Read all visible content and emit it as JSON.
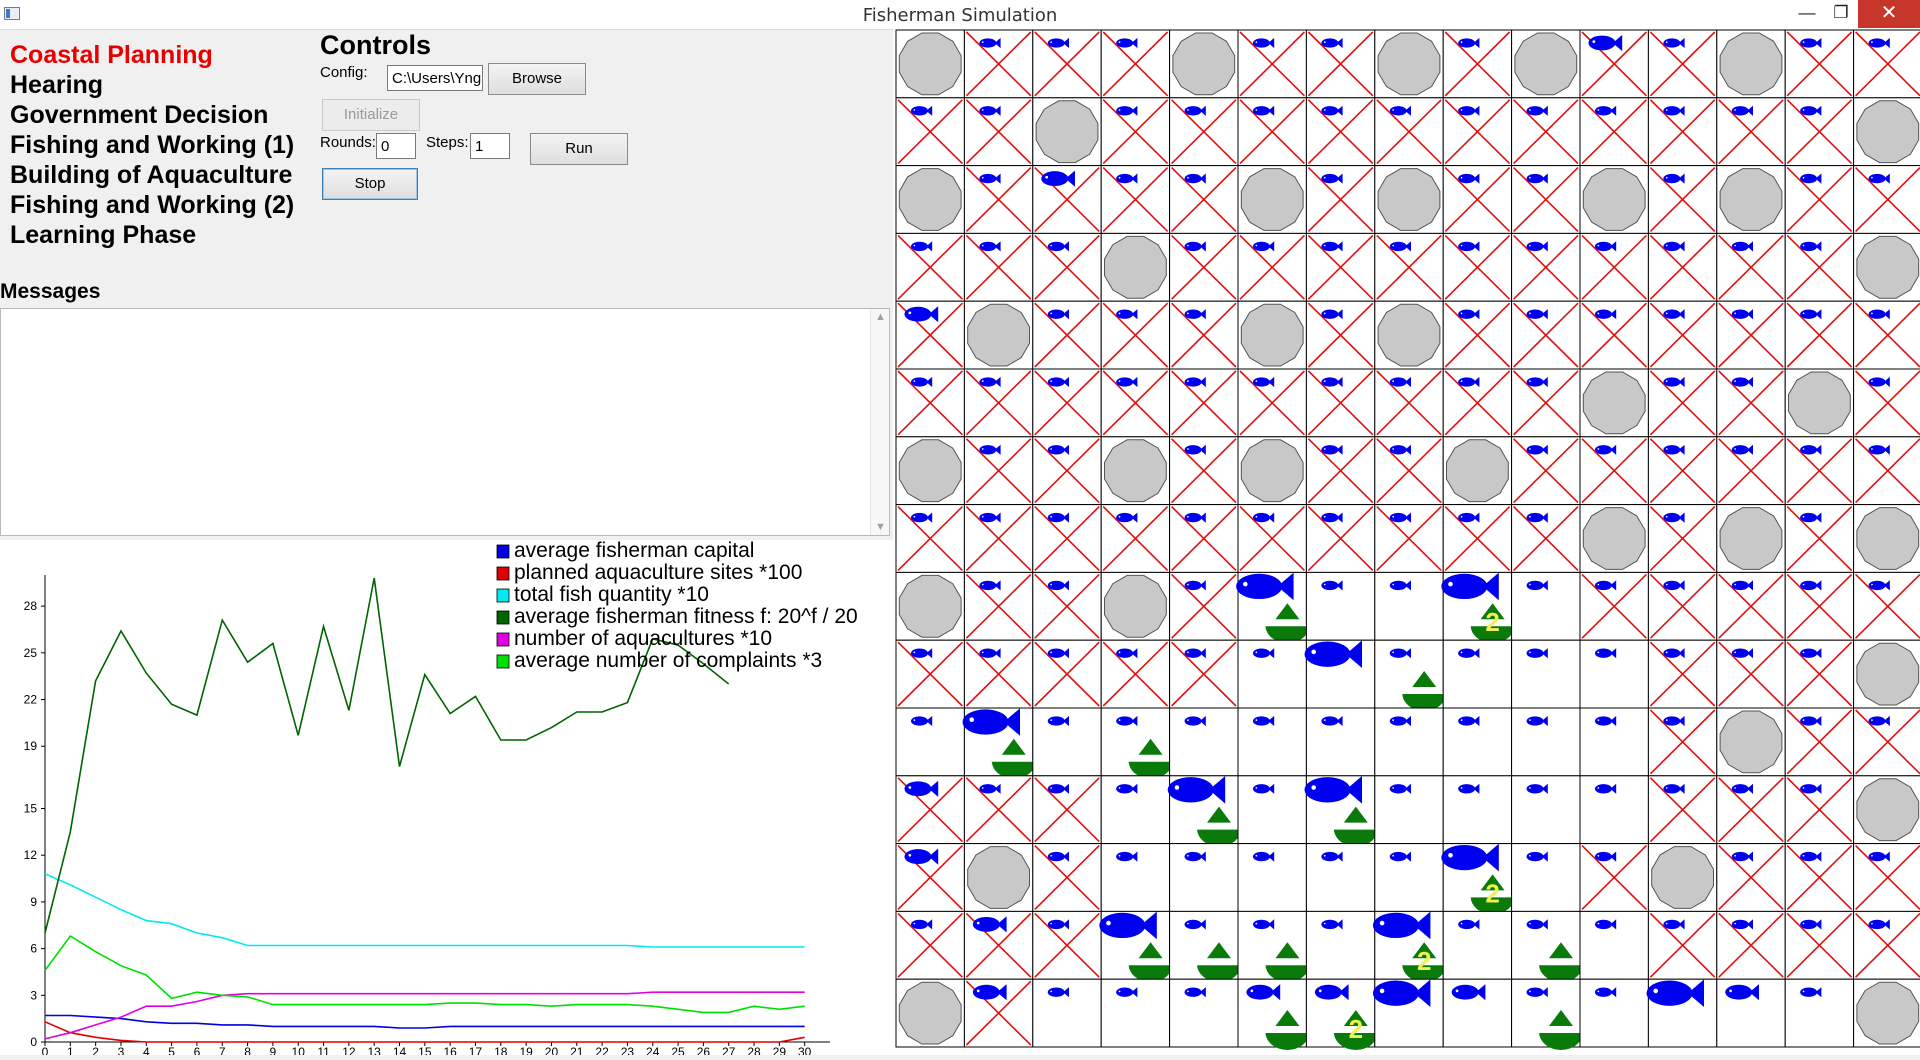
{
  "window": {
    "title": "Fisherman Simulation",
    "minimize": "—",
    "maximize": "❐",
    "close": "✕"
  },
  "phases": [
    {
      "label": "Coastal Planning",
      "active": true
    },
    {
      "label": "Hearing",
      "active": false
    },
    {
      "label": "Government Decision",
      "active": false
    },
    {
      "label": "Fishing and Working (1)",
      "active": false
    },
    {
      "label": "Building of Aquaculture",
      "active": false
    },
    {
      "label": "Fishing and Working (2)",
      "active": false
    },
    {
      "label": "Learning Phase",
      "active": false
    }
  ],
  "controls": {
    "title": "Controls",
    "config_label": "Config:",
    "config_value": "C:\\Users\\Yng",
    "browse_label": "Browse",
    "initialize_label": "Initialize",
    "rounds_label": "Rounds:",
    "rounds_value": "0",
    "steps_label": "Steps:",
    "steps_value": "1",
    "run_label": "Run",
    "stop_label": "Stop"
  },
  "messages": {
    "title": "Messages",
    "content": ""
  },
  "chart_data": {
    "type": "line",
    "x": [
      0,
      1,
      2,
      3,
      4,
      5,
      6,
      7,
      8,
      9,
      10,
      11,
      12,
      13,
      14,
      15,
      16,
      17,
      18,
      19,
      20,
      21,
      22,
      23,
      24,
      25,
      26,
      27,
      28,
      29,
      30
    ],
    "yticks": [
      0,
      3,
      6,
      9,
      12,
      15,
      19,
      22,
      25,
      28
    ],
    "ylim": [
      0,
      30
    ],
    "xlim": [
      0,
      31
    ],
    "legend_position": "top-right",
    "series": [
      {
        "name": "average fisherman capital",
        "color": "#0000e0",
        "values": [
          1.7,
          1.7,
          1.6,
          1.5,
          1.3,
          1.2,
          1.2,
          1.1,
          1.1,
          1.0,
          1.0,
          1.0,
          1.0,
          1.0,
          0.9,
          0.9,
          1.0,
          1.0,
          1.0,
          1.0,
          1.0,
          1.0,
          1.0,
          1.0,
          1.0,
          1.0,
          1.0,
          1.0,
          1.0,
          1.0,
          1.0
        ]
      },
      {
        "name": "planned aquaculture sites *100",
        "color": "#e00000",
        "values": [
          1.3,
          0.6,
          0.3,
          0.1,
          0,
          0,
          0,
          0,
          0,
          0,
          0,
          0,
          0,
          0,
          0,
          0,
          0,
          0,
          0,
          0,
          0,
          0,
          0,
          0,
          0,
          0,
          0,
          0,
          0,
          0,
          0.3
        ]
      },
      {
        "name": "total fish quantity *10",
        "color": "#00e8f0",
        "values": [
          10.8,
          10.1,
          9.3,
          8.5,
          7.8,
          7.6,
          7.0,
          6.7,
          6.2,
          6.2,
          6.2,
          6.2,
          6.2,
          6.2,
          6.2,
          6.2,
          6.2,
          6.2,
          6.2,
          6.2,
          6.2,
          6.2,
          6.2,
          6.2,
          6.1,
          6.1,
          6.1,
          6.1,
          6.1,
          6.1,
          6.1
        ]
      },
      {
        "name": "average fisherman fitness f: 20^f / 20",
        "color": "#006400",
        "values": [
          7.0,
          13.5,
          23.2,
          26.4,
          23.7,
          21.7,
          21.0,
          27.1,
          24.4,
          25.6,
          19.7,
          26.7,
          21.3,
          29.8,
          17.7,
          23.6,
          21.1,
          22.2,
          19.4,
          19.4,
          20.2,
          21.2,
          21.2,
          21.8,
          25.9,
          25.5,
          24.3,
          23.0,
          null,
          null,
          null
        ]
      },
      {
        "name": "number of aquacultures *10",
        "color": "#e000e0",
        "values": [
          0.2,
          0.6,
          1.1,
          1.6,
          2.3,
          2.3,
          2.6,
          3.0,
          3.1,
          3.1,
          3.1,
          3.1,
          3.1,
          3.1,
          3.1,
          3.1,
          3.1,
          3.1,
          3.1,
          3.1,
          3.1,
          3.1,
          3.1,
          3.1,
          3.2,
          3.2,
          3.2,
          3.2,
          3.2,
          3.2,
          3.2
        ]
      },
      {
        "name": "average number of complaints *3",
        "color": "#00e000",
        "values": [
          4.6,
          6.8,
          5.8,
          4.9,
          4.3,
          2.8,
          3.2,
          3.0,
          2.9,
          2.4,
          2.4,
          2.4,
          2.4,
          2.4,
          2.4,
          2.4,
          2.5,
          2.5,
          2.4,
          2.4,
          2.3,
          2.4,
          2.4,
          2.4,
          2.3,
          2.1,
          1.9,
          1.9,
          2.3,
          2.1,
          2.3
        ]
      }
    ]
  },
  "grid": {
    "cols": 15,
    "rows": 15,
    "colors": {
      "cross": "#e01010",
      "fish": "#0000f0",
      "boat": "#0a7a0a",
      "label": "#f0f050",
      "rock": "#c8c8c8"
    },
    "rocks": [
      [
        0,
        0
      ],
      [
        0,
        4
      ],
      [
        0,
        7
      ],
      [
        0,
        9
      ],
      [
        0,
        12
      ],
      [
        1,
        2
      ],
      [
        1,
        14
      ],
      [
        2,
        0
      ],
      [
        2,
        5
      ],
      [
        2,
        7
      ],
      [
        2,
        10
      ],
      [
        2,
        12
      ],
      [
        3,
        3
      ],
      [
        3,
        14
      ],
      [
        4,
        1
      ],
      [
        4,
        5
      ],
      [
        4,
        7
      ],
      [
        5,
        10
      ],
      [
        5,
        13
      ],
      [
        6,
        0
      ],
      [
        6,
        3
      ],
      [
        6,
        5
      ],
      [
        6,
        8
      ],
      [
        7,
        10
      ],
      [
        7,
        12
      ],
      [
        7,
        14
      ],
      [
        8,
        0
      ],
      [
        8,
        3
      ],
      [
        9,
        14
      ],
      [
        10,
        12
      ],
      [
        11,
        14
      ],
      [
        12,
        1
      ],
      [
        12,
        11
      ],
      [
        14,
        0
      ],
      [
        14,
        14
      ]
    ],
    "open": [
      [
        8,
        5
      ],
      [
        8,
        6
      ],
      [
        8,
        7
      ],
      [
        8,
        8
      ],
      [
        8,
        9
      ],
      [
        9,
        5
      ],
      [
        9,
        6
      ],
      [
        9,
        7
      ],
      [
        9,
        8
      ],
      [
        9,
        9
      ],
      [
        9,
        10
      ],
      [
        10,
        0
      ],
      [
        10,
        1
      ],
      [
        10,
        2
      ],
      [
        10,
        3
      ],
      [
        10,
        4
      ],
      [
        10,
        5
      ],
      [
        10,
        6
      ],
      [
        10,
        7
      ],
      [
        10,
        8
      ],
      [
        10,
        9
      ],
      [
        10,
        10
      ],
      [
        11,
        3
      ],
      [
        11,
        4
      ],
      [
        11,
        5
      ],
      [
        11,
        6
      ],
      [
        11,
        7
      ],
      [
        11,
        8
      ],
      [
        11,
        9
      ],
      [
        11,
        10
      ],
      [
        12,
        3
      ],
      [
        12,
        4
      ],
      [
        12,
        5
      ],
      [
        12,
        6
      ],
      [
        12,
        7
      ],
      [
        12,
        8
      ],
      [
        12,
        9
      ],
      [
        13,
        3
      ],
      [
        13,
        4
      ],
      [
        13,
        5
      ],
      [
        13,
        6
      ],
      [
        13,
        7
      ],
      [
        13,
        8
      ],
      [
        13,
        9
      ],
      [
        13,
        10
      ],
      [
        14,
        2
      ],
      [
        14,
        3
      ],
      [
        14,
        4
      ],
      [
        14,
        5
      ],
      [
        14,
        6
      ],
      [
        14,
        7
      ],
      [
        14,
        8
      ],
      [
        14,
        9
      ],
      [
        14,
        10
      ],
      [
        14,
        11
      ],
      [
        14,
        12
      ],
      [
        14,
        13
      ]
    ],
    "big_fish": [
      [
        8,
        5
      ],
      [
        8,
        8
      ],
      [
        9,
        6
      ],
      [
        10,
        1
      ],
      [
        11,
        4
      ],
      [
        11,
        6
      ],
      [
        12,
        8
      ],
      [
        13,
        3
      ],
      [
        13,
        7
      ],
      [
        14,
        7
      ],
      [
        14,
        11
      ]
    ],
    "medium_fish": [
      [
        0,
        10
      ],
      [
        2,
        2
      ],
      [
        4,
        0
      ],
      [
        11,
        0
      ],
      [
        12,
        0
      ],
      [
        13,
        1
      ],
      [
        14,
        1
      ],
      [
        14,
        5
      ],
      [
        14,
        6
      ],
      [
        14,
        8
      ],
      [
        14,
        12
      ]
    ],
    "boats": [
      {
        "r": 8,
        "c": 5,
        "label": ""
      },
      {
        "r": 8,
        "c": 8,
        "label": "2"
      },
      {
        "r": 9,
        "c": 7,
        "label": ""
      },
      {
        "r": 10,
        "c": 1,
        "label": ""
      },
      {
        "r": 10,
        "c": 3,
        "label": ""
      },
      {
        "r": 11,
        "c": 4,
        "label": ""
      },
      {
        "r": 11,
        "c": 6,
        "label": ""
      },
      {
        "r": 12,
        "c": 8,
        "label": "2"
      },
      {
        "r": 13,
        "c": 3,
        "label": ""
      },
      {
        "r": 13,
        "c": 4,
        "label": ""
      },
      {
        "r": 13,
        "c": 5,
        "label": ""
      },
      {
        "r": 13,
        "c": 7,
        "label": "2"
      },
      {
        "r": 13,
        "c": 9,
        "label": ""
      },
      {
        "r": 14,
        "c": 5,
        "label": ""
      },
      {
        "r": 14,
        "c": 6,
        "label": "2"
      },
      {
        "r": 14,
        "c": 9,
        "label": ""
      }
    ]
  }
}
